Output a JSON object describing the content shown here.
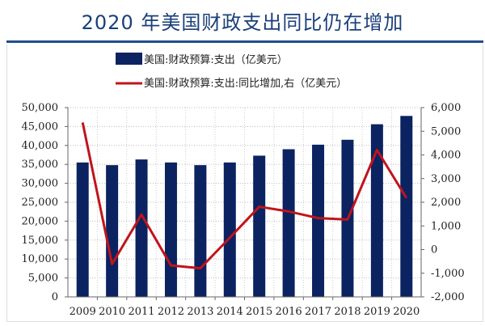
{
  "chart_data": {
    "type": "bar+line",
    "title": "2020 年美国财政支出同比仍在增加",
    "categories": [
      "2009",
      "2010",
      "2011",
      "2012",
      "2013",
      "2014",
      "2015",
      "2016",
      "2017",
      "2018",
      "2019",
      "2020"
    ],
    "series": [
      {
        "name": "美国:财政预算:支出（亿美元）",
        "type": "bar",
        "axis": "left",
        "color": "#0b2360",
        "values": [
          35500,
          34800,
          36300,
          35500,
          34800,
          35500,
          37300,
          39000,
          40200,
          41500,
          45600,
          47800
        ]
      },
      {
        "name": "美国:财政预算:支出:同比增加,右（亿美元）",
        "type": "line",
        "axis": "right",
        "color": "#c0141c",
        "values": [
          5370,
          -610,
          1480,
          -670,
          -790,
          500,
          1810,
          1610,
          1330,
          1270,
          4210,
          2180
        ]
      }
    ],
    "left_axis": {
      "ylim": [
        0,
        50000
      ],
      "ticks": [
        "0",
        "5,000",
        "10,000",
        "15,000",
        "20,000",
        "25,000",
        "30,000",
        "35,000",
        "40,000",
        "45,000",
        "50,000"
      ]
    },
    "right_axis": {
      "ylim": [
        -2000,
        6000
      ],
      "ticks": [
        "-2,000",
        "-1,000",
        "0",
        "1,000",
        "2,000",
        "3,000",
        "4,000",
        "5,000",
        "6,000"
      ]
    },
    "grid": true,
    "legend": "top"
  }
}
